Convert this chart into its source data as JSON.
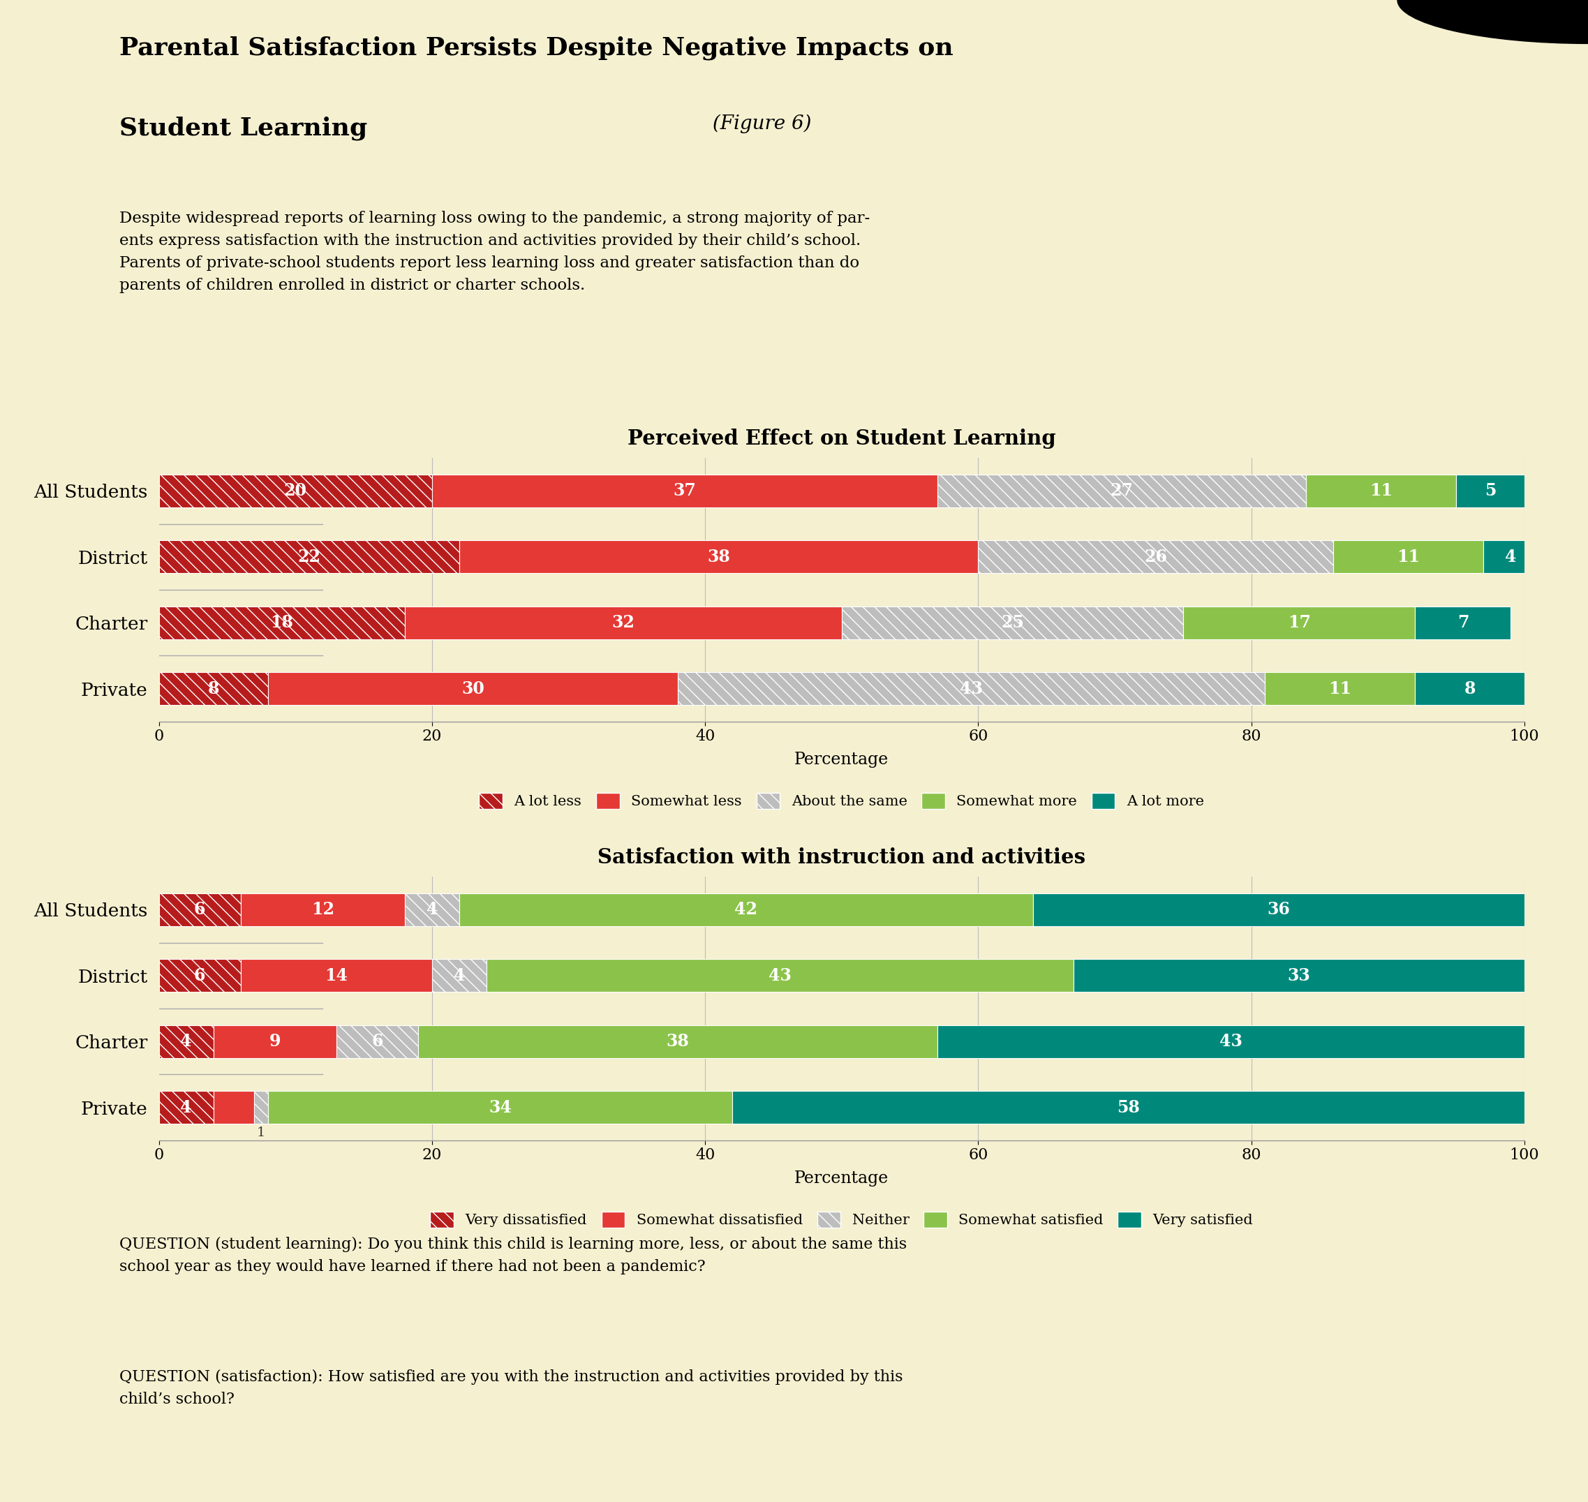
{
  "bg_color": "#f5f0d0",
  "header_bg": "#dde8cc",
  "title_line1": "Parental Satisfaction Persists Despite Negative Impacts on",
  "title_line2_bold": "Student Learning",
  "title_line2_italic": " (Figure 6)",
  "subtitle_lines": [
    "Despite widespread reports of learning loss owing to the pandemic, a strong majority of par-",
    "ents express satisfaction with the instruction and activities provided by their child’s school.",
    "Parents of private-school students report less learning loss and greater satisfaction than do",
    "parents of children enrolled in district or charter schools."
  ],
  "chart1_title": "Perceived Effect on Student Learning",
  "chart1_categories": [
    "All Students",
    "District",
    "Charter",
    "Private"
  ],
  "chart1_keys": [
    "A lot less",
    "Somewhat less",
    "About the same",
    "Somewhat more",
    "A lot more"
  ],
  "chart1_data": {
    "A lot less": [
      20,
      22,
      18,
      8
    ],
    "Somewhat less": [
      37,
      38,
      32,
      30
    ],
    "About the same": [
      27,
      26,
      25,
      43
    ],
    "Somewhat more": [
      11,
      11,
      17,
      11
    ],
    "A lot more": [
      5,
      4,
      7,
      8
    ]
  },
  "chart1_colors": {
    "A lot less": "#b71c1c",
    "Somewhat less": "#e53935",
    "About the same": "#bdbdbd",
    "Somewhat more": "#8bc34a",
    "A lot more": "#00897b"
  },
  "chart1_hatches": {
    "A lot less": "\\\\",
    "Somewhat less": "",
    "About the same": "\\\\",
    "Somewhat more": "",
    "A lot more": ""
  },
  "chart2_title": "Satisfaction with instruction and activities",
  "chart2_categories": [
    "All Students",
    "District",
    "Charter",
    "Private"
  ],
  "chart2_keys": [
    "Very dissatisfied",
    "Somewhat dissatisfied",
    "Neither",
    "Somewhat satisfied",
    "Very satisfied"
  ],
  "chart2_data": {
    "Very dissatisfied": [
      6,
      6,
      4,
      4
    ],
    "Somewhat dissatisfied": [
      12,
      14,
      9,
      3
    ],
    "Neither": [
      4,
      4,
      6,
      1
    ],
    "Somewhat satisfied": [
      42,
      43,
      38,
      34
    ],
    "Very satisfied": [
      36,
      33,
      43,
      58
    ]
  },
  "chart2_colors": {
    "Very dissatisfied": "#b71c1c",
    "Somewhat dissatisfied": "#e53935",
    "Neither": "#bdbdbd",
    "Somewhat satisfied": "#8bc34a",
    "Very satisfied": "#00897b"
  },
  "chart2_hatches": {
    "Very dissatisfied": "\\\\",
    "Somewhat dissatisfied": "",
    "Neither": "\\\\",
    "Somewhat satisfied": "",
    "Very satisfied": ""
  },
  "footnote1": "QUESTION (student learning): Do you think this child is learning more, less, or about the same this\nschool year as they would have learned if there had not been a pandemic?",
  "footnote2": "QUESTION (satisfaction): How satisfied are you with the instruction and activities provided by this\nchild’s school?"
}
